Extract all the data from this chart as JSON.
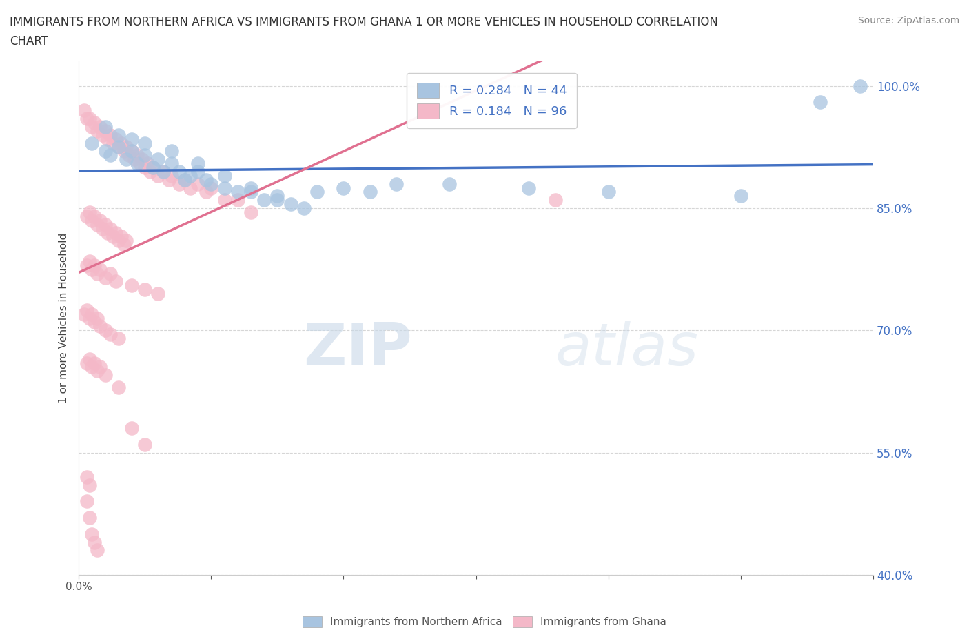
{
  "title": "IMMIGRANTS FROM NORTHERN AFRICA VS IMMIGRANTS FROM GHANA 1 OR MORE VEHICLES IN HOUSEHOLD CORRELATION\nCHART",
  "source": "Source: ZipAtlas.com",
  "ylabel": "1 or more Vehicles in Household",
  "xlim": [
    0.0,
    0.3
  ],
  "ylim": [
    0.4,
    1.03
  ],
  "xticks": [
    0.0,
    0.05,
    0.1,
    0.15,
    0.2,
    0.25,
    0.3
  ],
  "xticklabels": [
    "0.0%",
    "",
    "",
    "",
    "",
    "",
    ""
  ],
  "ytick_positions": [
    0.4,
    0.55,
    0.7,
    0.85,
    1.0
  ],
  "yticklabels": [
    "40.0%",
    "55.0%",
    "70.0%",
    "85.0%",
    "100.0%"
  ],
  "r_blue": 0.284,
  "n_blue": 44,
  "r_pink": 0.184,
  "n_pink": 96,
  "blue_color": "#a8c4e0",
  "pink_color": "#f4b8c8",
  "blue_line_color": "#4472c4",
  "pink_line_color": "#e07090",
  "watermark_zip": "ZIP",
  "watermark_atlas": "atlas",
  "legend_label_blue": "Immigrants from Northern Africa",
  "legend_label_pink": "Immigrants from Ghana",
  "blue_x": [
    0.005,
    0.01,
    0.012,
    0.015,
    0.018,
    0.02,
    0.022,
    0.025,
    0.028,
    0.03,
    0.032,
    0.035,
    0.038,
    0.04,
    0.042,
    0.045,
    0.048,
    0.05,
    0.055,
    0.06,
    0.065,
    0.07,
    0.075,
    0.08,
    0.09,
    0.1,
    0.11,
    0.12,
    0.01,
    0.015,
    0.02,
    0.025,
    0.035,
    0.045,
    0.055,
    0.065,
    0.075,
    0.085,
    0.14,
    0.17,
    0.2,
    0.25,
    0.28,
    0.295
  ],
  "blue_y": [
    0.93,
    0.92,
    0.915,
    0.925,
    0.91,
    0.92,
    0.905,
    0.915,
    0.9,
    0.91,
    0.895,
    0.905,
    0.895,
    0.885,
    0.89,
    0.895,
    0.885,
    0.88,
    0.875,
    0.87,
    0.87,
    0.86,
    0.865,
    0.855,
    0.87,
    0.875,
    0.87,
    0.88,
    0.95,
    0.94,
    0.935,
    0.93,
    0.92,
    0.905,
    0.89,
    0.875,
    0.86,
    0.85,
    0.88,
    0.875,
    0.87,
    0.865,
    0.98,
    1.0
  ],
  "pink_x": [
    0.002,
    0.003,
    0.004,
    0.005,
    0.006,
    0.007,
    0.008,
    0.009,
    0.01,
    0.011,
    0.012,
    0.013,
    0.014,
    0.015,
    0.016,
    0.017,
    0.018,
    0.019,
    0.02,
    0.021,
    0.022,
    0.023,
    0.024,
    0.025,
    0.026,
    0.027,
    0.028,
    0.03,
    0.032,
    0.034,
    0.035,
    0.038,
    0.04,
    0.042,
    0.045,
    0.048,
    0.05,
    0.055,
    0.06,
    0.065,
    0.003,
    0.004,
    0.005,
    0.006,
    0.007,
    0.008,
    0.009,
    0.01,
    0.011,
    0.012,
    0.013,
    0.014,
    0.015,
    0.016,
    0.017,
    0.018,
    0.003,
    0.004,
    0.005,
    0.006,
    0.007,
    0.008,
    0.01,
    0.012,
    0.014,
    0.02,
    0.025,
    0.03,
    0.002,
    0.003,
    0.004,
    0.005,
    0.006,
    0.007,
    0.008,
    0.01,
    0.012,
    0.015,
    0.003,
    0.004,
    0.005,
    0.006,
    0.007,
    0.008,
    0.01,
    0.015,
    0.02,
    0.025,
    0.003,
    0.004,
    0.18,
    0.003,
    0.004,
    0.005,
    0.006,
    0.007
  ],
  "pink_y": [
    0.97,
    0.96,
    0.96,
    0.95,
    0.955,
    0.945,
    0.95,
    0.94,
    0.945,
    0.935,
    0.94,
    0.93,
    0.935,
    0.925,
    0.93,
    0.92,
    0.925,
    0.915,
    0.92,
    0.91,
    0.915,
    0.905,
    0.91,
    0.9,
    0.905,
    0.895,
    0.9,
    0.89,
    0.895,
    0.885,
    0.89,
    0.88,
    0.885,
    0.875,
    0.88,
    0.87,
    0.875,
    0.86,
    0.86,
    0.845,
    0.84,
    0.845,
    0.835,
    0.84,
    0.83,
    0.835,
    0.825,
    0.83,
    0.82,
    0.825,
    0.815,
    0.82,
    0.81,
    0.815,
    0.805,
    0.81,
    0.78,
    0.785,
    0.775,
    0.78,
    0.77,
    0.775,
    0.765,
    0.77,
    0.76,
    0.755,
    0.75,
    0.745,
    0.72,
    0.725,
    0.715,
    0.72,
    0.71,
    0.715,
    0.705,
    0.7,
    0.695,
    0.69,
    0.66,
    0.665,
    0.655,
    0.66,
    0.65,
    0.655,
    0.645,
    0.63,
    0.58,
    0.56,
    0.52,
    0.51,
    0.86,
    0.49,
    0.47,
    0.45,
    0.44,
    0.43
  ]
}
